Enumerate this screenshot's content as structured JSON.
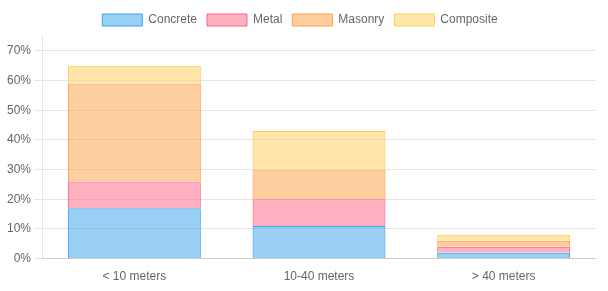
{
  "chart_data": {
    "type": "bar",
    "stacked": true,
    "categories": [
      "< 10 meters",
      "10-40 meters",
      "> 40 meters"
    ],
    "series": [
      {
        "name": "Concrete",
        "values": [
          17,
          11,
          2
        ]
      },
      {
        "name": "Metal",
        "values": [
          9,
          9,
          2
        ]
      },
      {
        "name": "Masonry",
        "values": [
          33,
          10,
          2
        ]
      },
      {
        "name": "Composite",
        "values": [
          6,
          13,
          2
        ]
      }
    ],
    "ylim": [
      0,
      75
    ],
    "yticks": [
      {
        "value": 0,
        "label": "0%"
      },
      {
        "value": 10,
        "label": "10%"
      },
      {
        "value": 20,
        "label": "20%"
      },
      {
        "value": 30,
        "label": "30%"
      },
      {
        "value": 40,
        "label": "40%"
      },
      {
        "value": 50,
        "label": "50%"
      },
      {
        "value": 60,
        "label": "60%"
      },
      {
        "value": 70,
        "label": "70%"
      }
    ],
    "grid": true,
    "legend": "top"
  }
}
